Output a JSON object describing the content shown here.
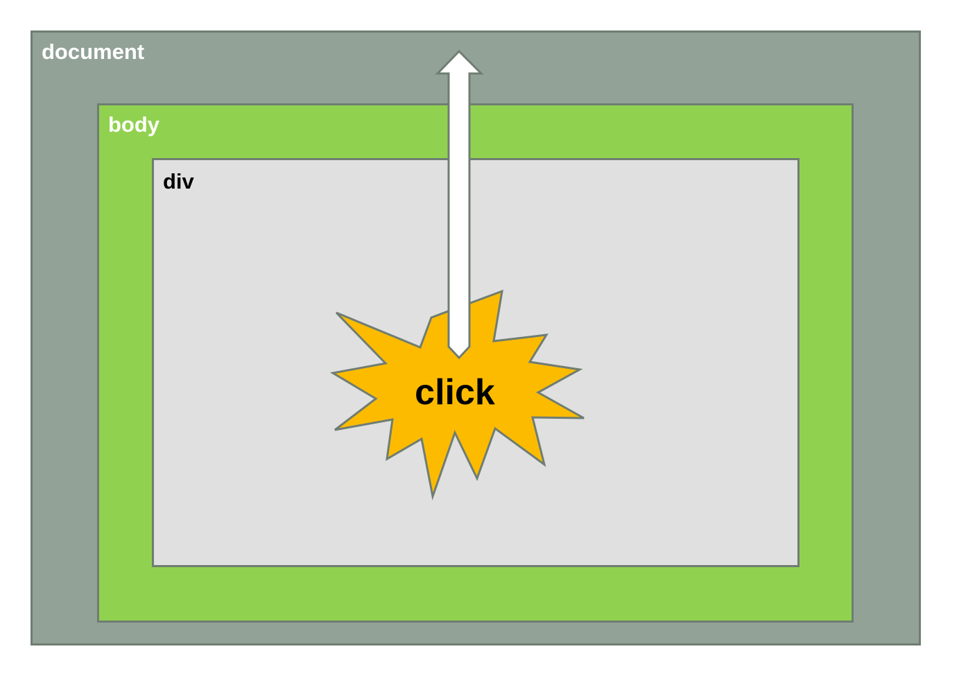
{
  "diagram": {
    "document": {
      "label": "document",
      "color": "#92a297"
    },
    "body": {
      "label": "body",
      "color": "#91d150"
    },
    "div": {
      "label": "div",
      "color": "#e0e0e0"
    },
    "event": {
      "label": "click",
      "color": "#fdbb00"
    },
    "arrow": {
      "direction": "up",
      "color": "#ffffff"
    },
    "outline_color": "#6f7d72"
  }
}
